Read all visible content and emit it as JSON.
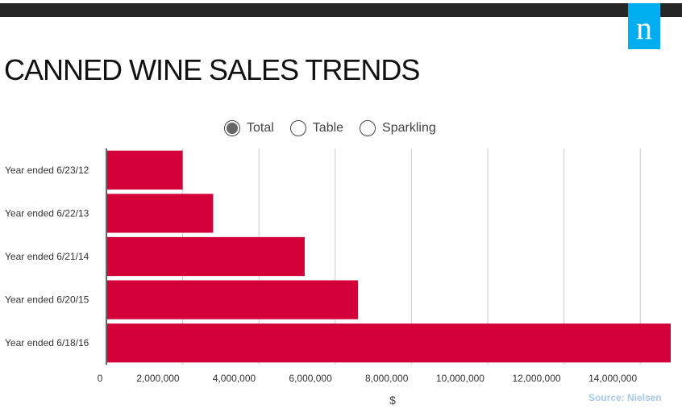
{
  "header": {
    "logo_text": "n",
    "title": "CANNED WINE SALES TRENDS"
  },
  "toggles": [
    {
      "label": "Total",
      "selected": true
    },
    {
      "label": "Table",
      "selected": false
    },
    {
      "label": "Sparkling",
      "selected": false
    }
  ],
  "source": "Source: Nielsen",
  "chart_data": {
    "type": "bar",
    "orientation": "horizontal",
    "categories": [
      "Year ended 6/23/12",
      "Year ended 6/22/13",
      "Year ended 6/21/14",
      "Year ended 6/20/15",
      "Year ended 6/18/16"
    ],
    "values": [
      2000000,
      2800000,
      5200000,
      6600000,
      14800000
    ],
    "xlabel": "$",
    "ylabel": "",
    "xlim": [
      0,
      14800000
    ],
    "ticks": [
      {
        "value": 0,
        "label": "0"
      },
      {
        "value": 2000000,
        "label": "2,000,000"
      },
      {
        "value": 4000000,
        "label": "4,000,000"
      },
      {
        "value": 6000000,
        "label": "6,000,000"
      },
      {
        "value": 8000000,
        "label": "8,000,000"
      },
      {
        "value": 10000000,
        "label": "10,000,000"
      },
      {
        "value": 12000000,
        "label": "12,000,000"
      },
      {
        "value": 14000000,
        "label": "14,000,000"
      }
    ],
    "bar_color": "#d4003a",
    "grid": true
  }
}
